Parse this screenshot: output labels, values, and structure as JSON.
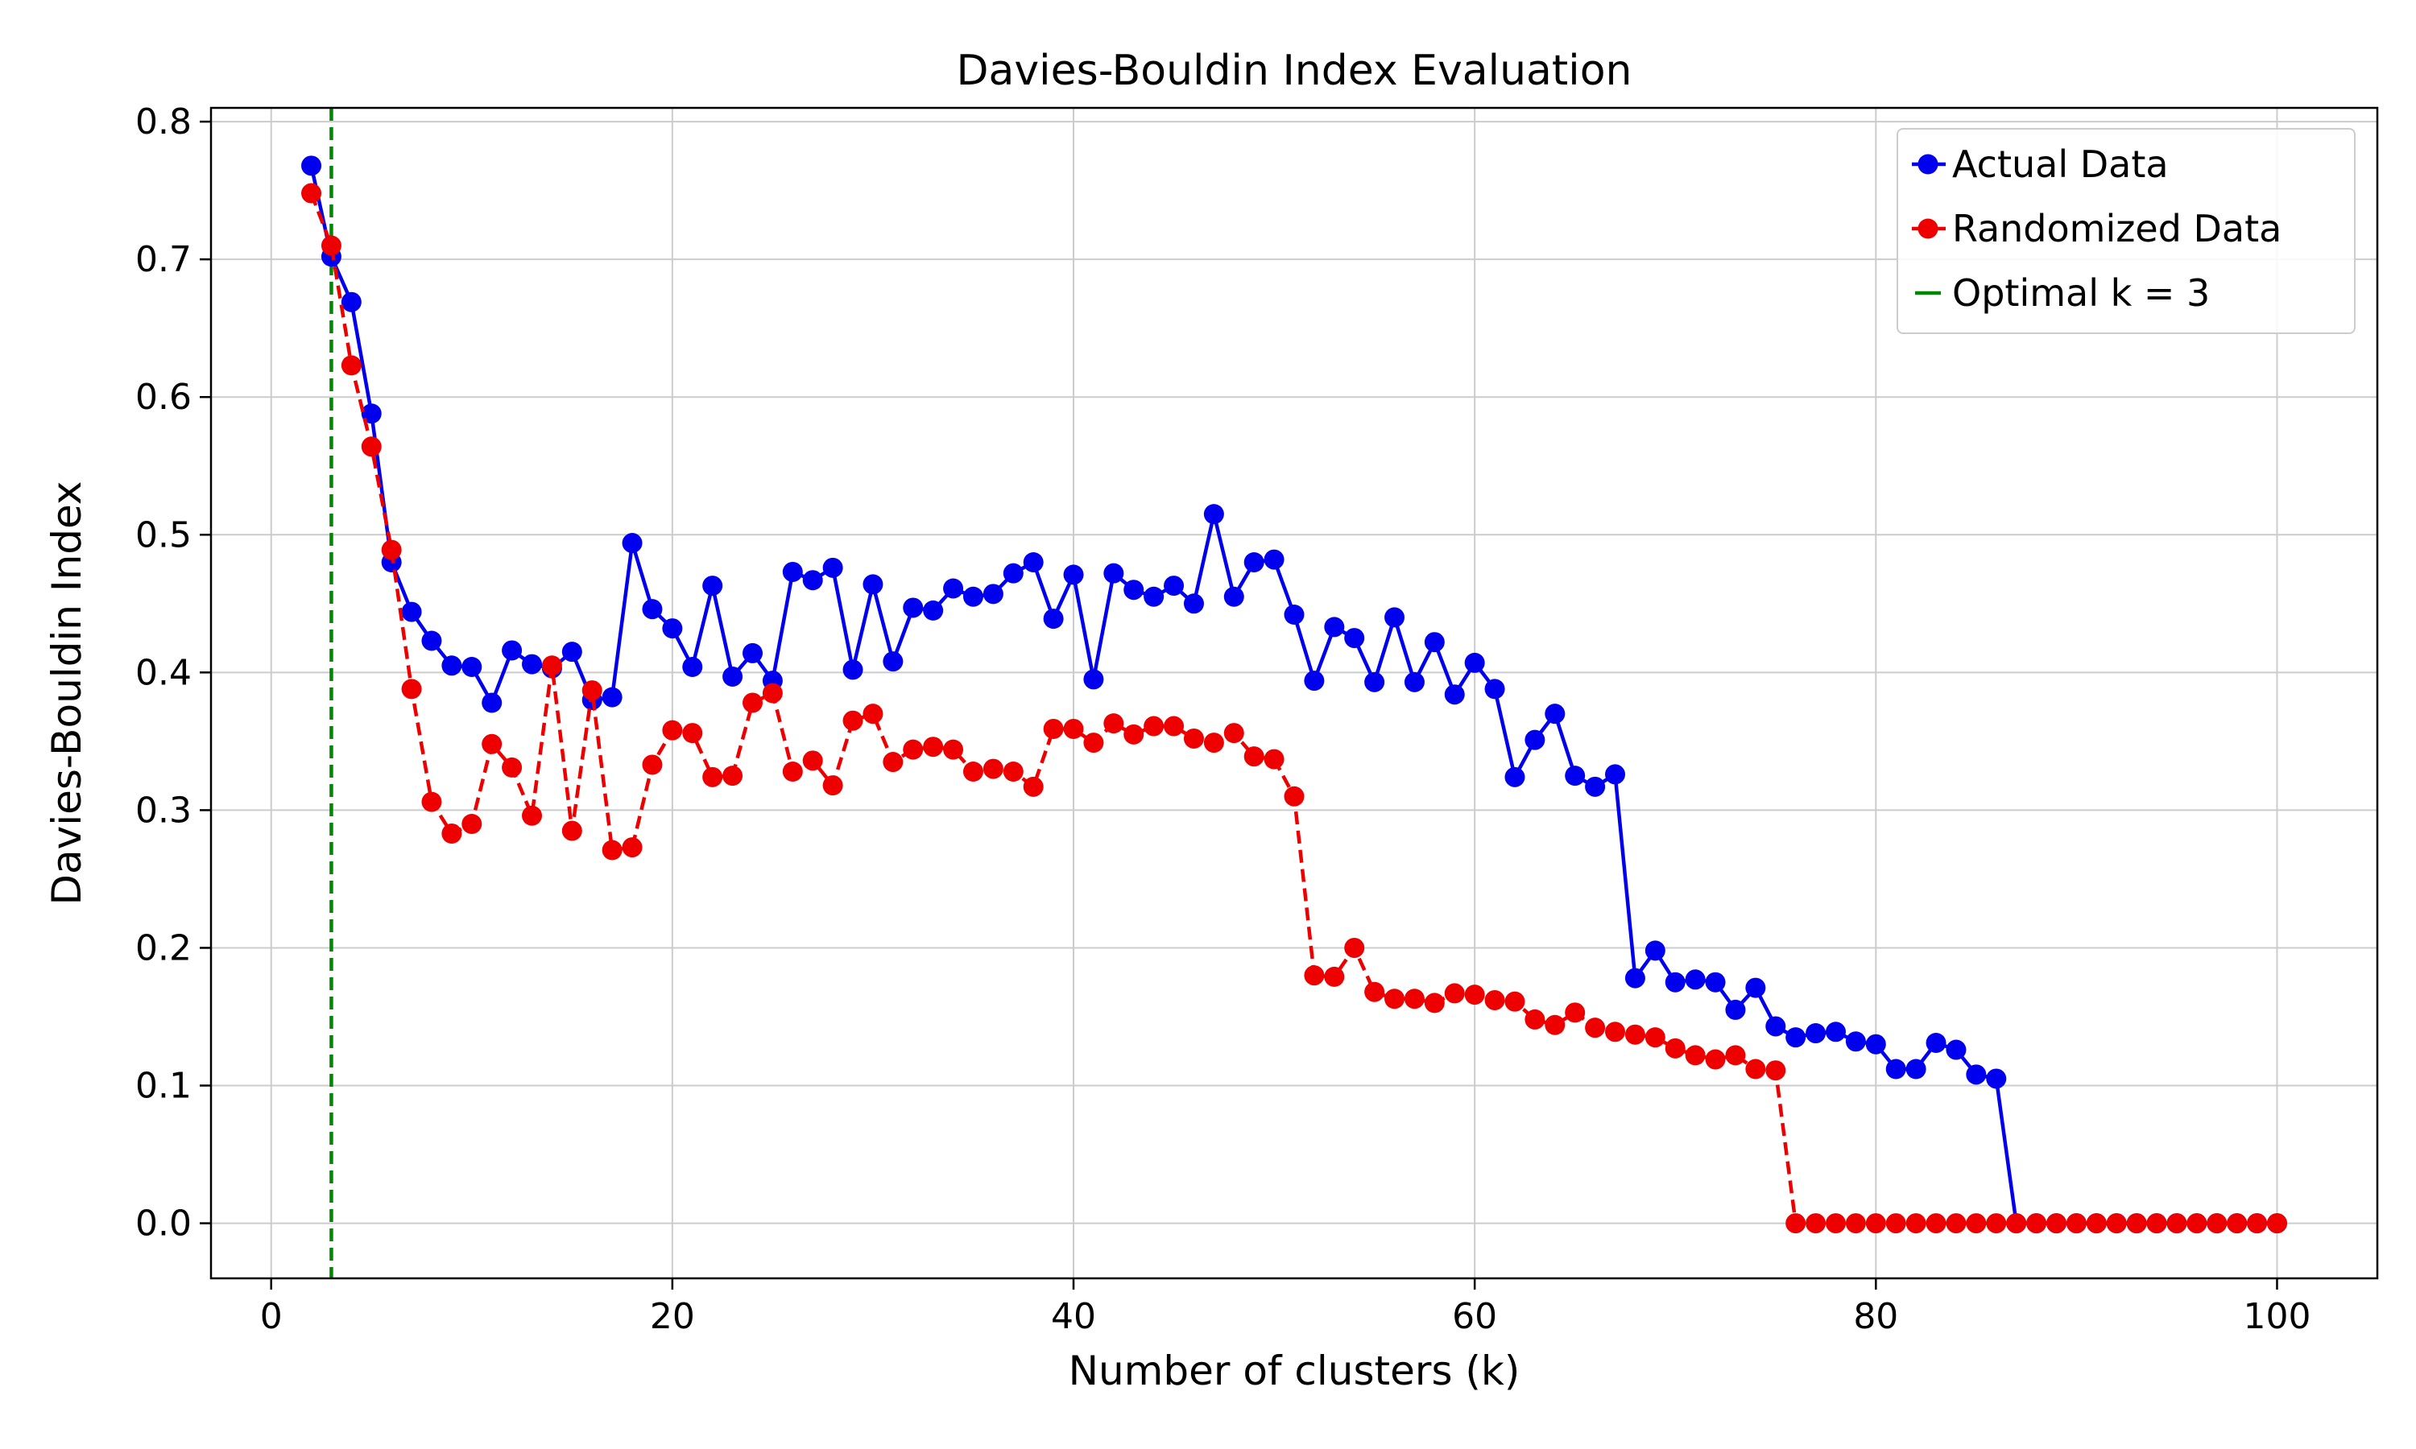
{
  "chart_data": {
    "type": "line",
    "title": "Davies-Bouldin Index Evaluation",
    "xlabel": "Number of clusters (k)",
    "ylabel": "Davies-Bouldin Index",
    "xlim": [
      -3,
      105
    ],
    "ylim": [
      -0.04,
      0.81
    ],
    "grid": true,
    "legend_position": "top-right",
    "x_ticks": [
      0,
      20,
      40,
      60,
      80,
      100
    ],
    "x_tick_labels": [
      "0",
      "20",
      "40",
      "60",
      "80",
      "100"
    ],
    "y_ticks": [
      0.0,
      0.1,
      0.2,
      0.3,
      0.4,
      0.5,
      0.6,
      0.7,
      0.8
    ],
    "y_tick_labels": [
      "0.0",
      "0.1",
      "0.2",
      "0.3",
      "0.4",
      "0.5",
      "0.6",
      "0.7",
      "0.8"
    ],
    "x": [
      2,
      3,
      4,
      5,
      6,
      7,
      8,
      9,
      10,
      11,
      12,
      13,
      14,
      15,
      16,
      17,
      18,
      19,
      20,
      21,
      22,
      23,
      24,
      25,
      26,
      27,
      28,
      29,
      30,
      31,
      32,
      33,
      34,
      35,
      36,
      37,
      38,
      39,
      40,
      41,
      42,
      43,
      44,
      45,
      46,
      47,
      48,
      49,
      50,
      51,
      52,
      53,
      54,
      55,
      56,
      57,
      58,
      59,
      60,
      61,
      62,
      63,
      64,
      65,
      66,
      67,
      68,
      69,
      70,
      71,
      72,
      73,
      74,
      75,
      76,
      77,
      78,
      79,
      80,
      81,
      82,
      83,
      84,
      85,
      86,
      87,
      88,
      89,
      90,
      91,
      92,
      93,
      94,
      95,
      96,
      97,
      98,
      99,
      100
    ],
    "series": [
      {
        "name": "Actual Data",
        "color": "#0000ee",
        "linestyle": "solid",
        "values": [
          0.768,
          0.702,
          0.669,
          0.588,
          0.48,
          0.444,
          0.423,
          0.405,
          0.404,
          0.378,
          0.416,
          0.406,
          0.403,
          0.415,
          0.38,
          0.382,
          0.494,
          0.446,
          0.432,
          0.404,
          0.463,
          0.397,
          0.414,
          0.394,
          0.473,
          0.467,
          0.476,
          0.402,
          0.464,
          0.408,
          0.447,
          0.445,
          0.461,
          0.455,
          0.457,
          0.472,
          0.48,
          0.439,
          0.471,
          0.395,
          0.472,
          0.46,
          0.455,
          0.463,
          0.45,
          0.515,
          0.455,
          0.48,
          0.482,
          0.442,
          0.394,
          0.433,
          0.425,
          0.393,
          0.44,
          0.393,
          0.422,
          0.384,
          0.407,
          0.388,
          0.324,
          0.351,
          0.37,
          0.325,
          0.317,
          0.326,
          0.178,
          0.198,
          0.175,
          0.177,
          0.175,
          0.155,
          0.171,
          0.143,
          0.135,
          0.138,
          0.139,
          0.132,
          0.13,
          0.112,
          0.112,
          0.131,
          0.126,
          0.108,
          0.105,
          0.0,
          0.0,
          0.0,
          0.0,
          0.0,
          0.0,
          0.0,
          0.0,
          0.0,
          0.0,
          0.0,
          0.0,
          0.0,
          0.0
        ]
      },
      {
        "name": "Randomized Data",
        "color": "#ee0000",
        "linestyle": "dashed",
        "values": [
          0.748,
          0.71,
          0.623,
          0.564,
          0.489,
          0.388,
          0.306,
          0.283,
          0.29,
          0.348,
          0.331,
          0.296,
          0.405,
          0.285,
          0.387,
          0.271,
          0.273,
          0.333,
          0.358,
          0.356,
          0.324,
          0.325,
          0.378,
          0.385,
          0.328,
          0.336,
          0.318,
          0.365,
          0.37,
          0.335,
          0.344,
          0.346,
          0.344,
          0.328,
          0.33,
          0.328,
          0.317,
          0.359,
          0.359,
          0.349,
          0.363,
          0.355,
          0.361,
          0.361,
          0.352,
          0.349,
          0.356,
          0.339,
          0.337,
          0.31,
          0.18,
          0.179,
          0.2,
          0.168,
          0.163,
          0.163,
          0.16,
          0.167,
          0.166,
          0.162,
          0.161,
          0.148,
          0.144,
          0.153,
          0.142,
          0.139,
          0.137,
          0.135,
          0.127,
          0.122,
          0.119,
          0.122,
          0.112,
          0.111,
          0.0,
          0.0,
          0.0,
          0.0,
          0.0,
          0.0,
          0.0,
          0.0,
          0.0,
          0.0,
          0.0,
          0.0,
          0.0,
          0.0,
          0.0,
          0.0,
          0.0,
          0.0,
          0.0,
          0.0,
          0.0,
          0.0,
          0.0,
          0.0,
          0.0
        ]
      }
    ],
    "vline": {
      "x": 3,
      "color": "#008800",
      "linestyle": "dashed",
      "label": "Optimal k = 3"
    },
    "legend": [
      "Actual Data",
      "Randomized Data",
      "Optimal k = 3"
    ]
  }
}
